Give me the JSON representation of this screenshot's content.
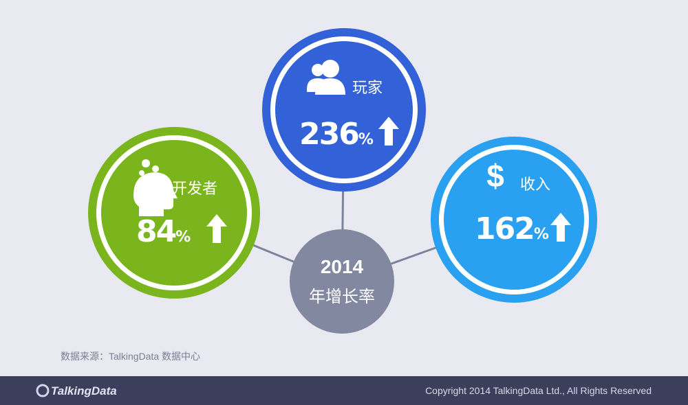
{
  "center": {
    "year": "2014",
    "label": "年增长率"
  },
  "nodes": [
    {
      "label": "开发者",
      "value": "84",
      "unit": "%"
    },
    {
      "label": "玩家",
      "value": "236",
      "unit": "%"
    },
    {
      "icon": "$",
      "label": "收入",
      "value": "162",
      "unit": "%"
    }
  ],
  "source": "数据来源：TalkingData 数据中心",
  "footer": {
    "logo": "TalkingData",
    "copyright": "Copyright 2014 TalkingData Ltd., All Rights Reserved"
  }
}
